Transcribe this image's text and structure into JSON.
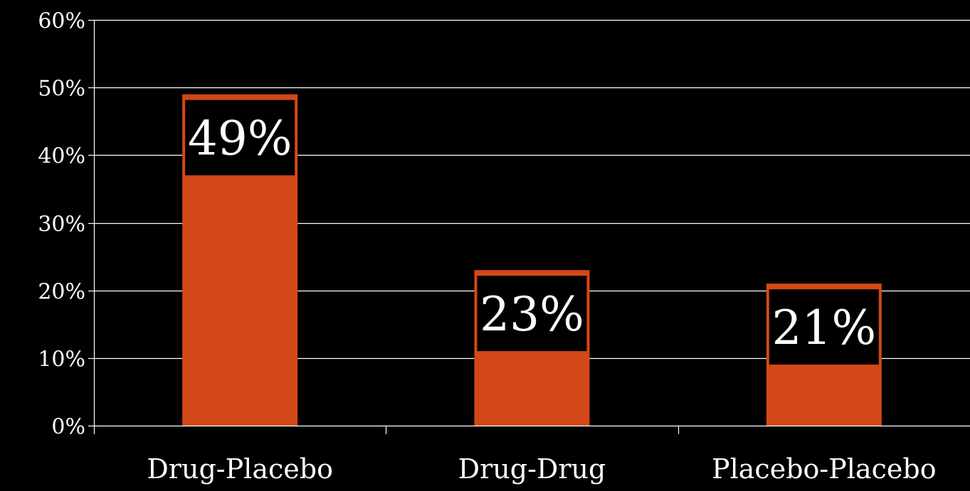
{
  "chart_data": {
    "type": "bar",
    "categories": [
      "Drug-Placebo",
      "Drug-Drug",
      "Placebo-Placebo"
    ],
    "values": [
      49,
      23,
      21
    ],
    "data_labels": [
      "49%",
      "23%",
      "21%"
    ],
    "ylim": [
      0,
      60
    ],
    "yticks": [
      0,
      10,
      20,
      30,
      40,
      50,
      60
    ],
    "ytick_labels": [
      "0%",
      "10%",
      "20%",
      "30%",
      "40%",
      "50%",
      "60%"
    ],
    "grid": true,
    "legend": "none"
  },
  "colors": {
    "background": "#000000",
    "bar": "#d34817",
    "axis": "#ffffff",
    "label_box": "#000000",
    "text": "#ffffff"
  }
}
